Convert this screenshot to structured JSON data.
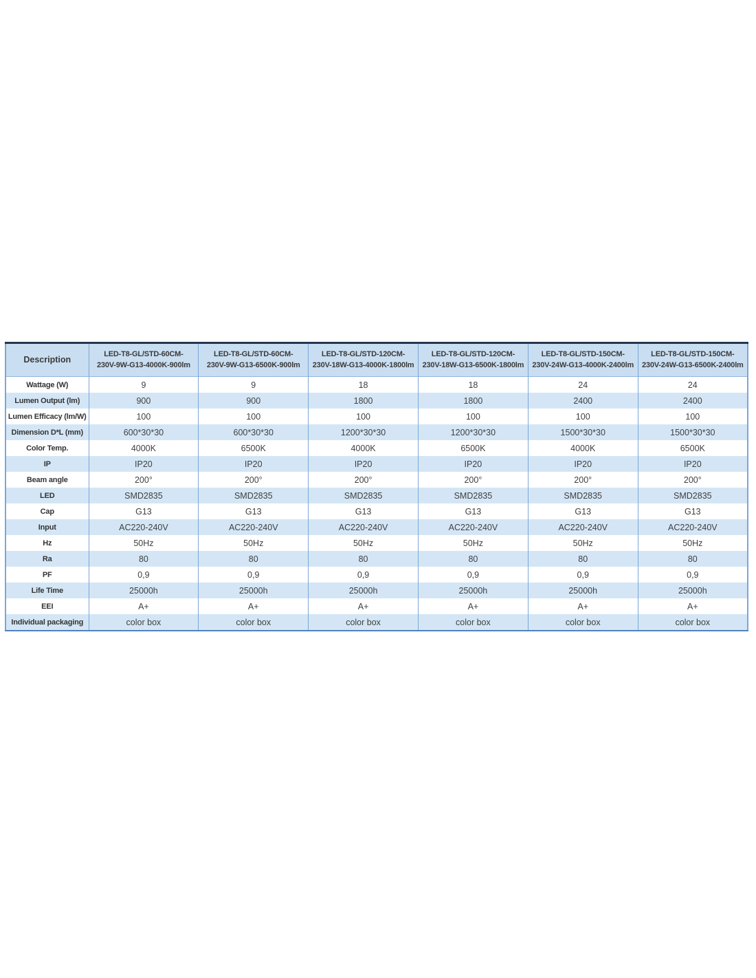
{
  "table": {
    "description_header": "Description",
    "columns": [
      "LED-T8-GL/STD-60CM-\n230V-9W-G13-4000K-900lm",
      "LED-T8-GL/STD-60CM-\n230V-9W-G13-6500K-900lm",
      "LED-T8-GL/STD-120CM-\n230V-18W-G13-4000K-1800lm",
      "LED-T8-GL/STD-120CM-\n230V-18W-G13-6500K-1800lm",
      "LED-T8-GL/STD-150CM-\n230V-24W-G13-4000K-2400lm",
      "LED-T8-GL/STD-150CM-\n230V-24W-G13-6500K-2400lm"
    ],
    "rows": [
      {
        "label": "Wattage (W)",
        "values": [
          "9",
          "9",
          "18",
          "18",
          "24",
          "24"
        ]
      },
      {
        "label": "Lumen Output (lm)",
        "values": [
          "900",
          "900",
          "1800",
          "1800",
          "2400",
          "2400"
        ]
      },
      {
        "label": "Lumen Efficacy (lm/W)",
        "values": [
          "100",
          "100",
          "100",
          "100",
          "100",
          "100"
        ]
      },
      {
        "label": "Dimension D*L (mm)",
        "values": [
          "600*30*30",
          "600*30*30",
          "1200*30*30",
          "1200*30*30",
          "1500*30*30",
          "1500*30*30"
        ]
      },
      {
        "label": "Color Temp.",
        "values": [
          "4000K",
          "6500K",
          "4000K",
          "6500K",
          "4000K",
          "6500K"
        ]
      },
      {
        "label": "IP",
        "values": [
          "IP20",
          "IP20",
          "IP20",
          "IP20",
          "IP20",
          "IP20"
        ]
      },
      {
        "label": "Beam angle",
        "values": [
          "200°",
          "200°",
          "200°",
          "200°",
          "200°",
          "200°"
        ]
      },
      {
        "label": "LED",
        "values": [
          "SMD2835",
          "SMD2835",
          "SMD2835",
          "SMD2835",
          "SMD2835",
          "SMD2835"
        ]
      },
      {
        "label": "Cap",
        "values": [
          "G13",
          "G13",
          "G13",
          "G13",
          "G13",
          "G13"
        ]
      },
      {
        "label": "Input",
        "values": [
          "AC220-240V",
          "AC220-240V",
          "AC220-240V",
          "AC220-240V",
          "AC220-240V",
          "AC220-240V"
        ]
      },
      {
        "label": "Hz",
        "values": [
          "50Hz",
          "50Hz",
          "50Hz",
          "50Hz",
          "50Hz",
          "50Hz"
        ]
      },
      {
        "label": "Ra",
        "values": [
          "80",
          "80",
          "80",
          "80",
          "80",
          "80"
        ]
      },
      {
        "label": "PF",
        "values": [
          "0,9",
          "0,9",
          "0,9",
          "0,9",
          "0,9",
          "0,9"
        ]
      },
      {
        "label": "Life Time",
        "values": [
          "25000h",
          "25000h",
          "25000h",
          "25000h",
          "25000h",
          "25000h"
        ]
      },
      {
        "label": "EEI",
        "values": [
          "A+",
          "A+",
          "A+",
          "A+",
          "A+",
          "A+"
        ]
      },
      {
        "label": "Individual packaging",
        "values": [
          "color box",
          "color box",
          "color box",
          "color box",
          "color box",
          "color box"
        ]
      }
    ],
    "colors": {
      "header_bg": "#c9def1",
      "row_alt_bg": "#d4e6f5",
      "separator_blue": "#7ba6d7",
      "top_border": "#24374e",
      "bottom_border": "#4f81bd",
      "label_text": "#333333",
      "value_text": "#3f3f3f"
    }
  }
}
